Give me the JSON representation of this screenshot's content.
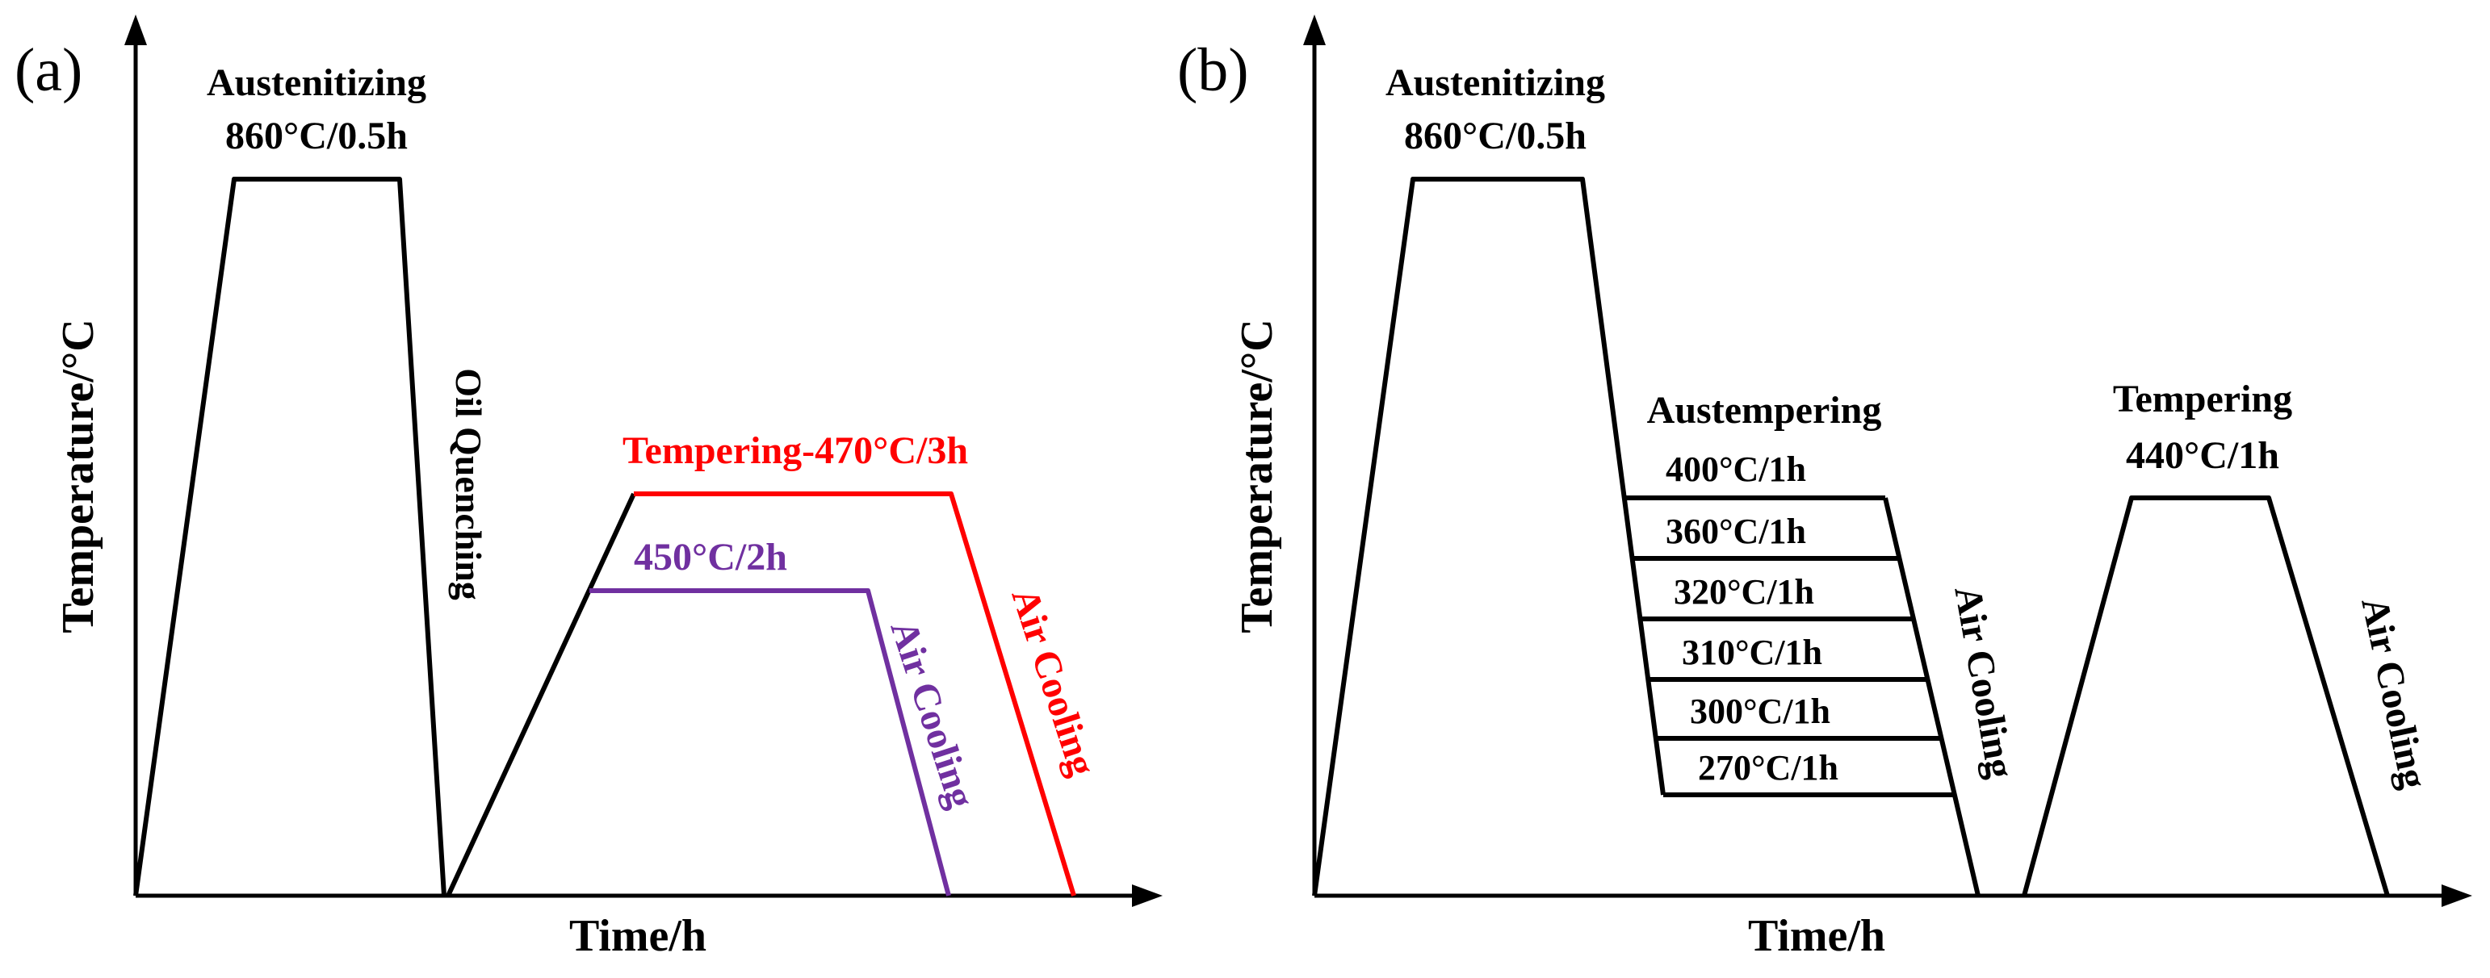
{
  "colors": {
    "axis": "#000000",
    "black_curve": "#000000",
    "tempering_470": "#ff0000",
    "tempering_450": "#7030a0"
  },
  "panel_a": {
    "panel_label": "(a)",
    "y_axis_label": "Temperature/°C",
    "x_axis_label": "Time/h",
    "austenitizing_title": "Austenitizing",
    "austenitizing_condition": "860°C/0.5h",
    "quench_label": "Oil Quenching",
    "tempering_red_label": "Tempering-470°C/3h",
    "tempering_purple_label": "450°C/2h",
    "air_cooling_red": "Air Cooling",
    "air_cooling_purple": "Air Cooling"
  },
  "panel_b": {
    "panel_label": "(b)",
    "y_axis_label": "Temperature/°C",
    "x_axis_label": "Time/h",
    "austenitizing_title": "Austenitizing",
    "austenitizing_condition": "860°C/0.5h",
    "austempering_title": "Austempering",
    "austempering_conditions": [
      "400°C/1h",
      "360°C/1h",
      "320°C/1h",
      "310°C/1h",
      "300°C/1h",
      "270°C/1h"
    ],
    "air_cooling_1": "Air Cooling",
    "tempering_title": "Tempering",
    "tempering_condition": "440°C/1h",
    "air_cooling_2": "Air Cooling"
  }
}
